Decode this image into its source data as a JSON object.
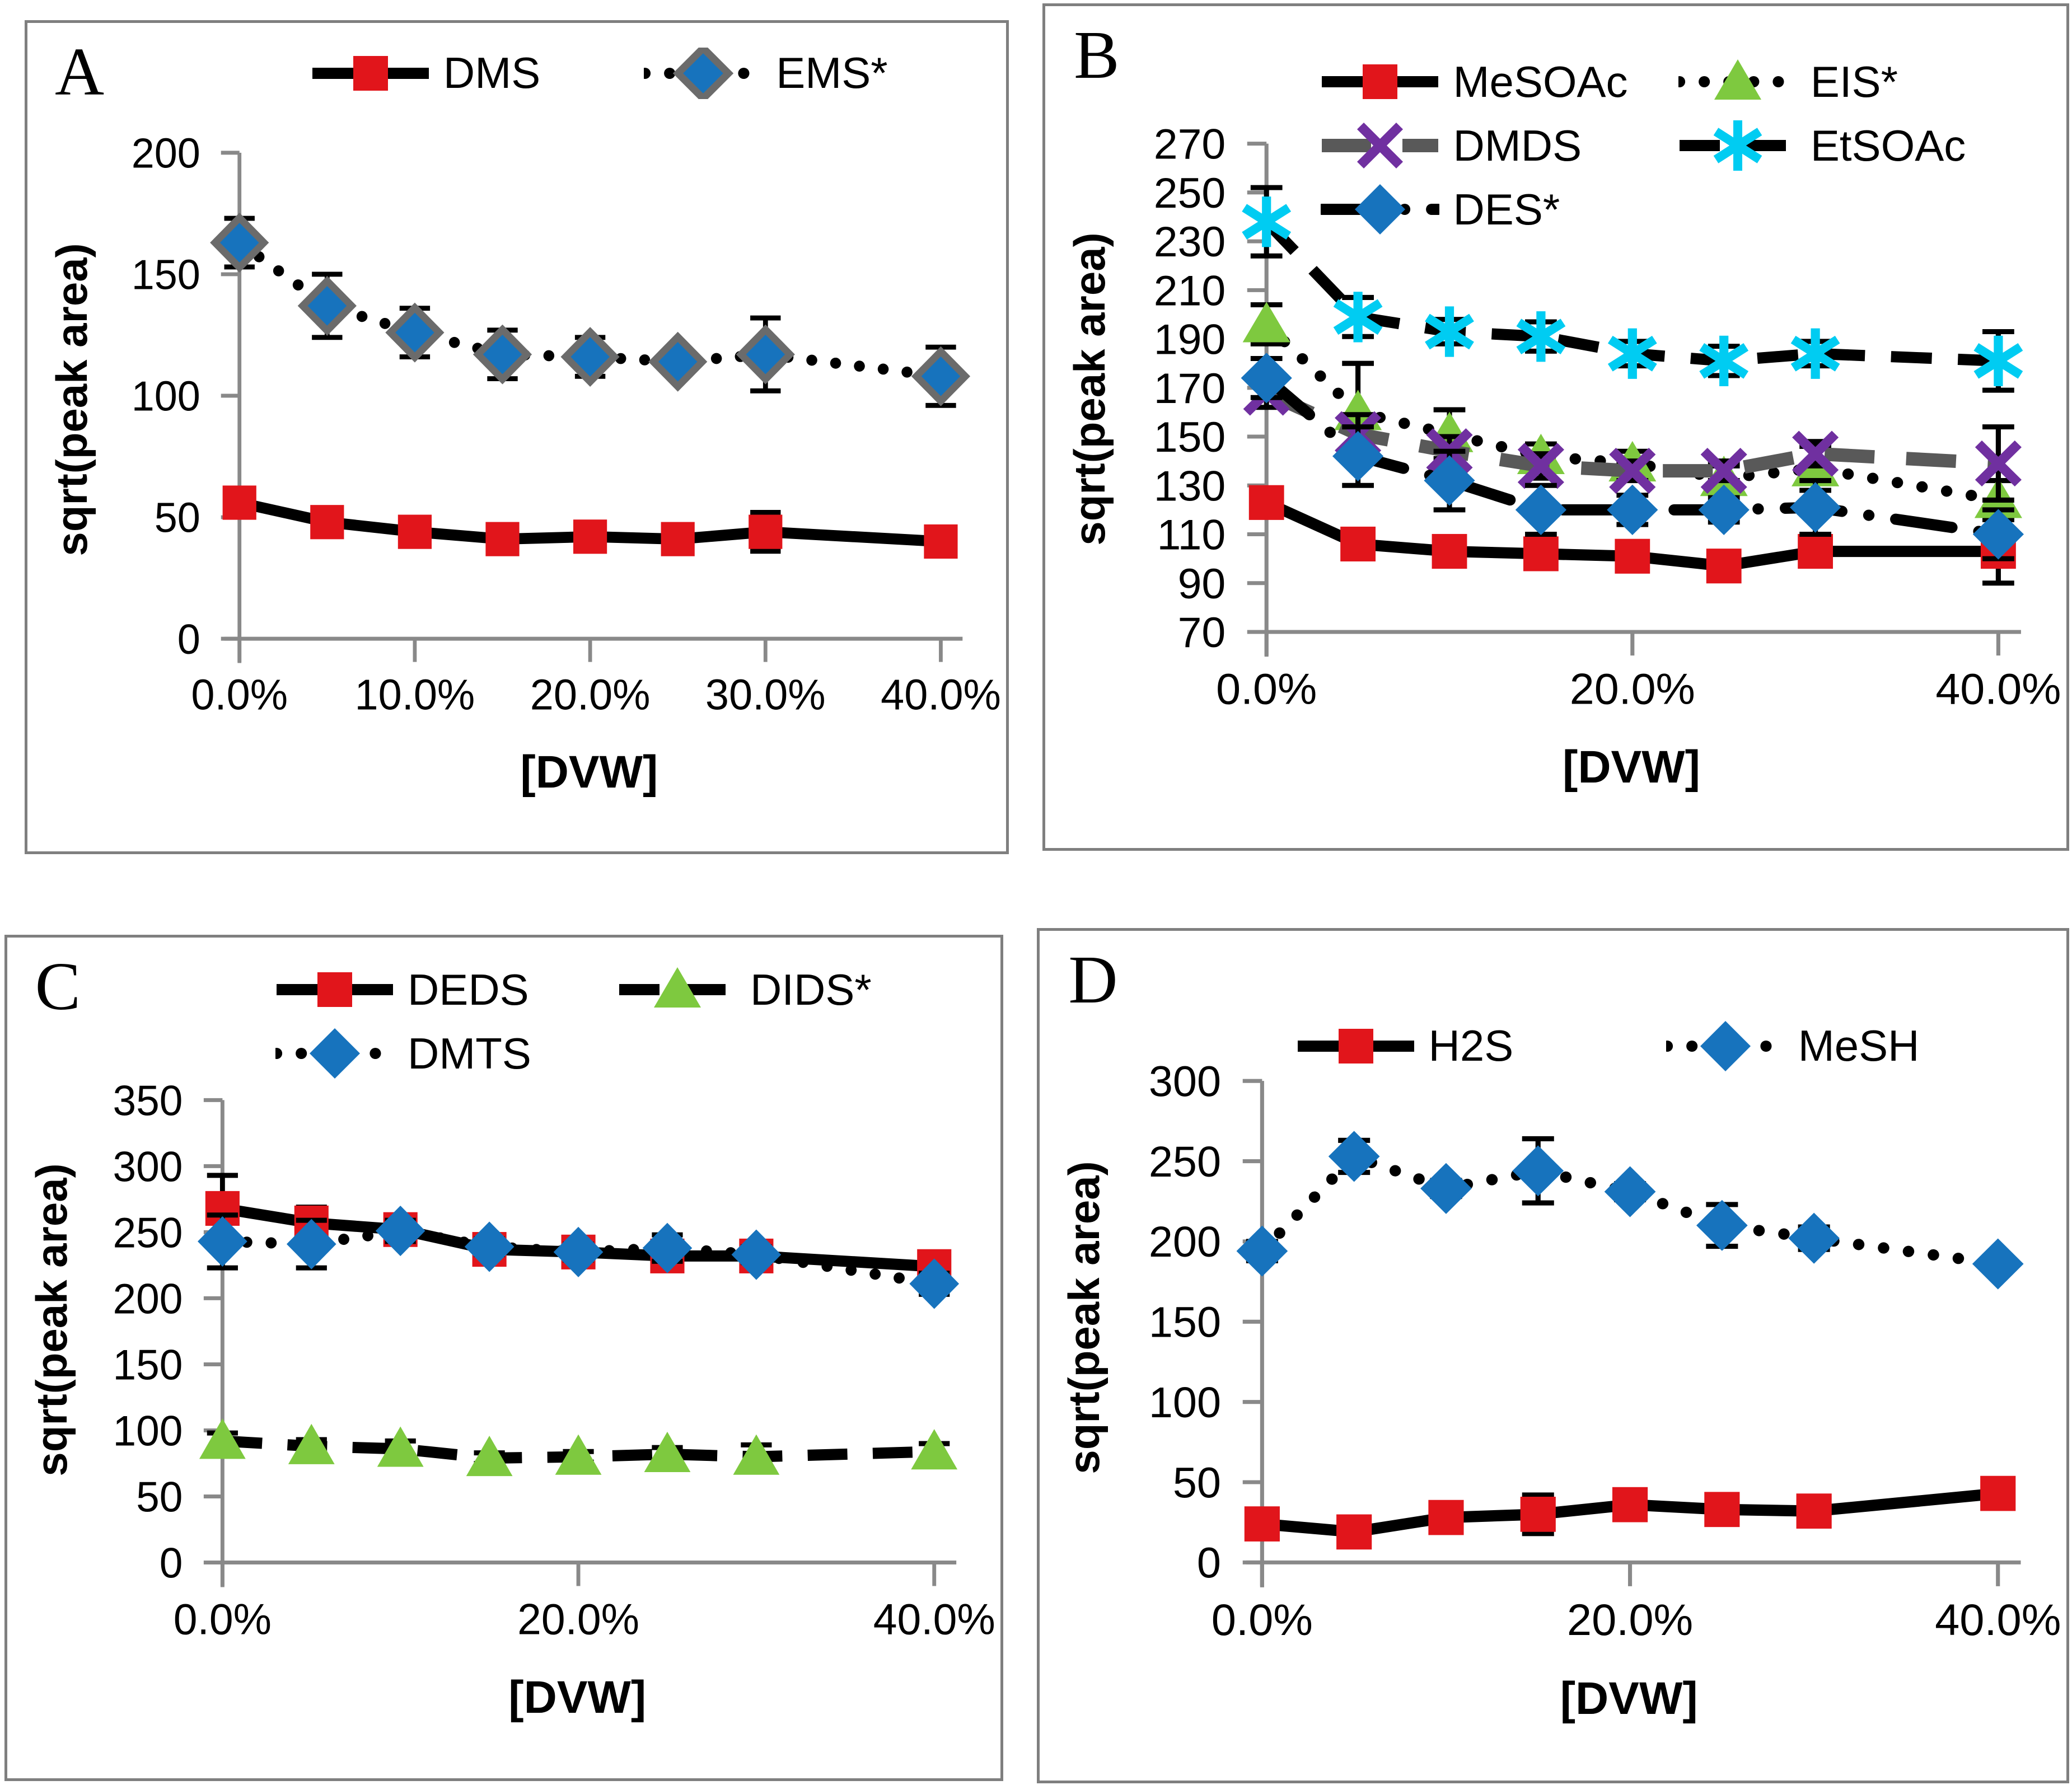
{
  "figure": {
    "panel_letters": [
      "A",
      "B",
      "C",
      "D"
    ],
    "colors": {
      "axis": "#898989",
      "error_bar": "#000000",
      "panel_border": "#7f7f7f",
      "background": "#ffffff",
      "red_square": "#e1151b",
      "blue_diamond": "#1773bd",
      "blue_diamond_outline_panelA": "#6b6b6b",
      "green_triangle": "#7ec93f",
      "purple_x": "#7030a0",
      "cyan_asterisk": "#00ccf2",
      "gray_dash_line": "#595959"
    }
  },
  "chart_data": [
    {
      "type": "line",
      "title": "A",
      "xlabel": "[DVW]",
      "ylabel": "sqrt(peak area)",
      "ylim": [
        0,
        200
      ],
      "yticks": [
        0,
        50,
        100,
        150,
        200
      ],
      "xlim": [
        0,
        40
      ],
      "xtick_values": [
        0,
        10,
        20,
        30,
        40
      ],
      "xtick_labels": [
        "0.0%",
        "10.0%",
        "20.0%",
        "30.0%",
        "40.0%"
      ],
      "x_percent": [
        0,
        5,
        10,
        15,
        20,
        25,
        30,
        40
      ],
      "grid": false,
      "legend_position": "top",
      "series": [
        {
          "name": "DMS",
          "marker": "square",
          "marker_color": "#e1151b",
          "line_style": "solid",
          "line_color": "#000000",
          "values": [
            56,
            48,
            44,
            41,
            42,
            41,
            44,
            40
          ],
          "errors": [
            4,
            3,
            3,
            3,
            3,
            3,
            8,
            4
          ]
        },
        {
          "name": "EMS*",
          "marker": "diamond",
          "marker_color": "#1773bd",
          "marker_outline": "#6b6b6b",
          "line_style": "dotted",
          "line_color": "#000000",
          "values": [
            163,
            137,
            126,
            117,
            116,
            114,
            117,
            108
          ],
          "errors": [
            10,
            13,
            10,
            10,
            8,
            4,
            15,
            12
          ]
        }
      ]
    },
    {
      "type": "line",
      "title": "B",
      "xlabel": "[DVW]",
      "ylabel": "sqrt(peak area)",
      "ylim": [
        70,
        270
      ],
      "yticks": [
        70,
        90,
        110,
        130,
        150,
        170,
        190,
        210,
        230,
        250,
        270
      ],
      "xlim": [
        0,
        40
      ],
      "xtick_values": [
        0,
        20,
        40
      ],
      "xtick_labels": [
        "0.0%",
        "20.0%",
        "40.0%"
      ],
      "x_percent": [
        0,
        5,
        10,
        15,
        20,
        25,
        30,
        40
      ],
      "grid": false,
      "legend_position": "top",
      "series": [
        {
          "name": "MeSOAc",
          "marker": "square",
          "marker_color": "#e1151b",
          "line_style": "solid",
          "line_color": "#000000",
          "values": [
            123,
            106,
            103,
            102,
            101,
            97,
            103,
            103
          ],
          "errors": [
            6,
            4,
            4,
            4,
            4,
            4,
            4,
            13
          ]
        },
        {
          "name": "EIS*",
          "marker": "triangle",
          "marker_color": "#7ec93f",
          "line_style": "dotted",
          "line_color": "#000000",
          "values": [
            196,
            160,
            151,
            142,
            139,
            133,
            137,
            124
          ],
          "errors": [
            8,
            20,
            10,
            5,
            5,
            5,
            9,
            8
          ]
        },
        {
          "name": "DMDS",
          "marker": "x",
          "marker_color": "#7030a0",
          "line_style": "gray_dashed",
          "line_color": "#595959",
          "values": [
            168,
            151,
            144,
            138,
            136,
            136,
            143,
            139
          ],
          "errors": [
            6,
            8,
            6,
            5,
            4,
            4,
            5,
            15
          ]
        },
        {
          "name": "EtSOAc",
          "marker": "asterisk",
          "marker_color": "#00ccf2",
          "line_style": "dashed",
          "line_color": "#000000",
          "values": [
            238,
            199,
            193,
            191,
            184,
            181,
            184,
            181
          ],
          "errors": [
            14,
            8,
            5,
            6,
            5,
            6,
            5,
            12
          ]
        },
        {
          "name": "DES*",
          "marker": "diamond",
          "marker_color": "#1773bd",
          "line_style": "long_dash_dot",
          "line_color": "#000000",
          "values": [
            174,
            142,
            132,
            120,
            120,
            120,
            121,
            110
          ],
          "errors": [
            8,
            12,
            12,
            10,
            6,
            5,
            11,
            10
          ]
        }
      ]
    },
    {
      "type": "line",
      "title": "C",
      "xlabel": "[DVW]",
      "ylabel": "sqrt(peak area)",
      "ylim": [
        0,
        350
      ],
      "yticks": [
        0,
        50,
        100,
        150,
        200,
        250,
        300,
        350
      ],
      "xlim": [
        0,
        40
      ],
      "xtick_values": [
        0,
        20,
        40
      ],
      "xtick_labels": [
        "0.0%",
        "20.0%",
        "40.0%"
      ],
      "x_percent": [
        0,
        5,
        10,
        15,
        20,
        25,
        30,
        40
      ],
      "grid": false,
      "legend_position": "top",
      "series": [
        {
          "name": "DEDS",
          "marker": "square",
          "marker_color": "#e1151b",
          "line_style": "solid",
          "line_color": "#000000",
          "values": [
            268,
            257,
            252,
            237,
            235,
            232,
            232,
            224
          ],
          "errors": [
            25,
            12,
            10,
            8,
            10,
            8,
            8,
            8
          ]
        },
        {
          "name": "DIDS*",
          "marker": "triangle",
          "marker_color": "#7ec93f",
          "line_style": "dashed",
          "line_color": "#000000",
          "values": [
            92,
            88,
            86,
            79,
            80,
            82,
            80,
            84
          ],
          "errors": [
            6,
            5,
            6,
            4,
            4,
            5,
            9,
            6
          ]
        },
        {
          "name": "DMTS",
          "marker": "diamond",
          "marker_color": "#1773bd",
          "line_style": "dotted",
          "line_color": "#000000",
          "values": [
            243,
            241,
            251,
            239,
            235,
            238,
            233,
            211
          ],
          "errors": [
            20,
            18,
            8,
            6,
            6,
            10,
            6,
            8
          ]
        }
      ]
    },
    {
      "type": "line",
      "title": "D",
      "xlabel": "[DVW]",
      "ylabel": "sqrt(peak area)",
      "ylim": [
        0,
        300
      ],
      "yticks": [
        0,
        50,
        100,
        150,
        200,
        250,
        300
      ],
      "xlim": [
        0,
        40
      ],
      "xtick_values": [
        0,
        20,
        40
      ],
      "xtick_labels": [
        "0.0%",
        "20.0%",
        "40.0%"
      ],
      "x_percent": [
        0,
        5,
        10,
        15,
        20,
        25,
        30,
        40
      ],
      "grid": false,
      "legend_position": "top",
      "series": [
        {
          "name": "H2S",
          "marker": "square",
          "marker_color": "#e1151b",
          "line_style": "solid",
          "line_color": "#000000",
          "values": [
            24,
            19,
            28,
            30,
            36,
            33,
            32,
            43
          ],
          "errors": [
            4,
            4,
            5,
            12,
            8,
            8,
            5,
            5
          ]
        },
        {
          "name": "MeSH",
          "marker": "diamond",
          "marker_color": "#1773bd",
          "line_style": "dotted",
          "line_color": "#000000",
          "values": [
            194,
            253,
            233,
            244,
            231,
            210,
            202,
            186
          ],
          "errors": [
            6,
            10,
            5,
            20,
            5,
            13,
            7,
            4
          ]
        }
      ]
    }
  ]
}
